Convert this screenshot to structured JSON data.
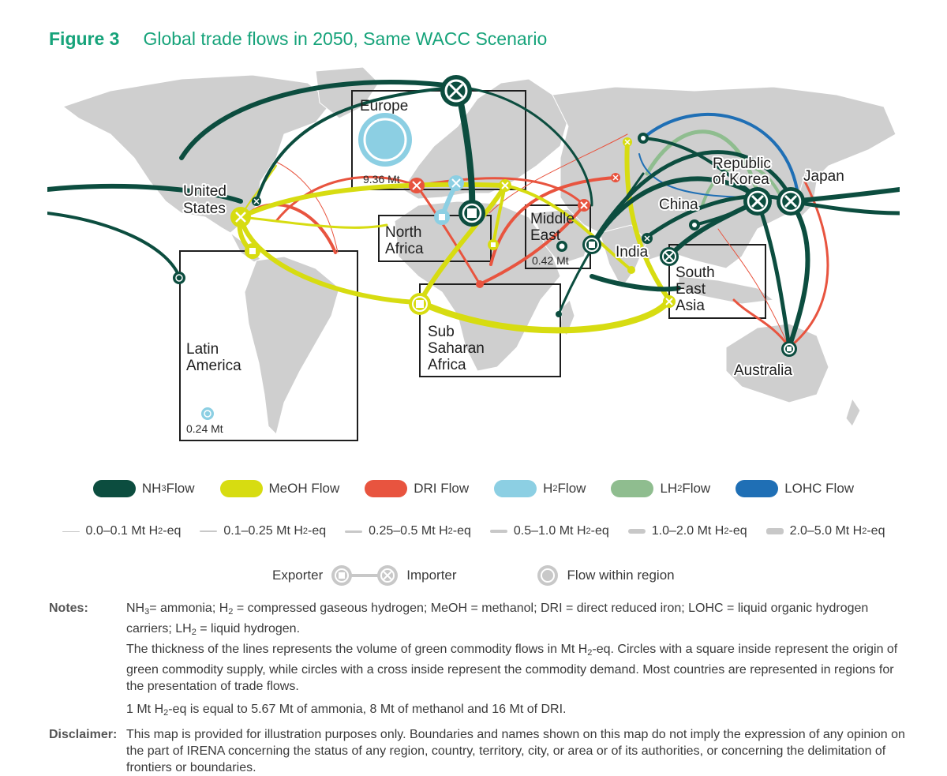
{
  "figure": {
    "number": "Figure 3",
    "title": "Global trade flows in 2050, Same WACC Scenario"
  },
  "colors": {
    "nh3": "#0c4d3f",
    "meoh": "#d7dc11",
    "dri": "#e8543f",
    "h2": "#8ccfe3",
    "lh2": "#8fbd8f",
    "lohc": "#1f6fb5",
    "land": "#cfcfcf",
    "title": "#16a37a"
  },
  "regions": {
    "europe": {
      "name": "Europe",
      "value": "9.36 Mt"
    },
    "united_states": {
      "name_line1": "United",
      "name_line2": "States"
    },
    "north_africa": {
      "name_line1": "North",
      "name_line2": "Africa"
    },
    "middle_east": {
      "name_line1": "Middle",
      "name_line2": "East",
      "value": "0.42 Mt"
    },
    "latin_america": {
      "name_line1": "Latin",
      "name_line2": "America",
      "value": "0.24 Mt"
    },
    "sub_saharan_africa": {
      "name_line1": "Sub",
      "name_line2": "Saharan",
      "name_line3": "Africa"
    },
    "india": {
      "name": "India"
    },
    "china": {
      "name": "China"
    },
    "korea": {
      "name_line1": "Republic",
      "name_line2": "of Korea"
    },
    "japan": {
      "name": "Japan"
    },
    "south_east_asia": {
      "name_line1": "South",
      "name_line2": "East",
      "name_line3": "Asia"
    },
    "australia": {
      "name": "Australia"
    }
  },
  "legend": {
    "flows": [
      {
        "label_main": "NH",
        "sub": "3",
        "label_rest": " Flow",
        "color": "#0c4d3f"
      },
      {
        "label_main": "MeOH Flow",
        "sub": "",
        "label_rest": "",
        "color": "#d7dc11"
      },
      {
        "label_main": "DRI Flow",
        "sub": "",
        "label_rest": "",
        "color": "#e8543f"
      },
      {
        "label_main": "H",
        "sub": "2",
        "label_rest": " Flow",
        "color": "#8ccfe3"
      },
      {
        "label_main": "LH",
        "sub": "2",
        "label_rest": " Flow",
        "color": "#8fbd8f"
      },
      {
        "label_main": "LOHC Flow",
        "sub": "",
        "label_rest": "",
        "color": "#1f6fb5"
      }
    ],
    "thickness": [
      {
        "label_main": "0.0–0.1 Mt H",
        "sub": "2",
        "label_rest": "-eq"
      },
      {
        "label_main": "0.1–0.25 Mt H",
        "sub": "2",
        "label_rest": "-eq"
      },
      {
        "label_main": "0.25–0.5 Mt H",
        "sub": "2",
        "label_rest": "-eq"
      },
      {
        "label_main": "0.5–1.0 Mt H",
        "sub": "2",
        "label_rest": "-eq"
      },
      {
        "label_main": "1.0–2.0 Mt H",
        "sub": "2",
        "label_rest": "-eq"
      },
      {
        "label_main": "2.0–5.0 Mt H",
        "sub": "2",
        "label_rest": "-eq"
      }
    ],
    "symbols": {
      "exporter": "Exporter",
      "importer": "Importer",
      "within": "Flow within region"
    }
  },
  "notes": {
    "notes_label": "Notes:",
    "line1_a": "NH",
    "line1_sub1": "3",
    "line1_b": "= ammonia; H",
    "line1_sub2": "2",
    "line1_c": " = compressed gaseous hydrogen; MeOH = methanol; DRI = direct reduced iron; LOHC = liquid organic hydrogen carriers; LH",
    "line1_sub3": "2",
    "line1_d": " = liquid hydrogen.",
    "line2_a": "The thickness of the lines represents the volume of green commodity flows in Mt H",
    "line2_sub": "2",
    "line2_b": "-eq. Circles with a square inside represent the origin of green commodity supply, while circles with a cross inside represent the commodity demand. Most countries are represented in regions for the presentation of trade flows.",
    "line3_a": "1 Mt H",
    "line3_sub": "2",
    "line3_b": "-eq is equal to 5.67 Mt of ammonia, 8 Mt of methanol and 16 Mt of DRI.",
    "disclaimer_label": "Disclaimer:",
    "disclaimer": "This map is provided for illustration purposes only. Boundaries and names shown on this map do not imply the expression of any opinion on the part of IRENA concerning the status of any region, country, territory, city, or area or of its authorities, or concerning the delimitation of frontiers or boundaries."
  }
}
